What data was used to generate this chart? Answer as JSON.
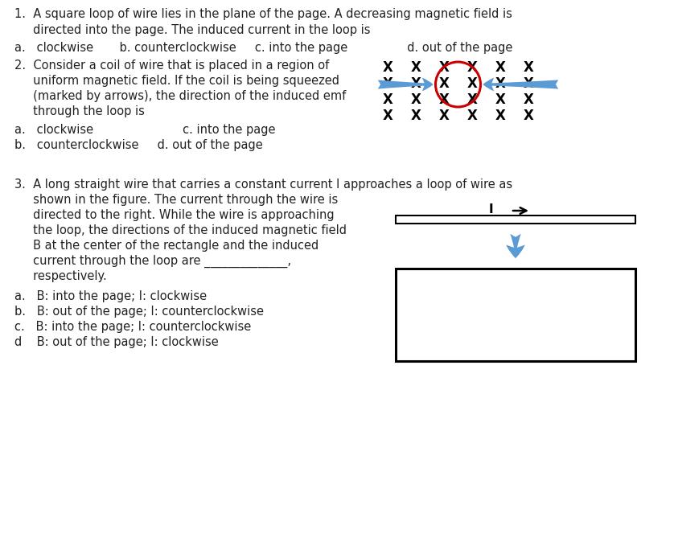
{
  "bg_color": "#ffffff",
  "text_color": "#222222",
  "q1_line1": "1.  A square loop of wire lies in the plane of the page. A decreasing magnetic field is",
  "q1_line2": "     directed into the page. The induced current in the loop is",
  "q1_ans": "a.   clockwise       b. counterclockwise     c. into the page                d. out of the page",
  "q2_line1": "2.  Consider a coil of wire that is placed in a region of",
  "q2_line2": "     uniform magnetic field. If the coil is being squeezed",
  "q2_line3": "     (marked by arrows), the direction of the induced emf",
  "q2_line4": "     through the loop is",
  "q2_ans_a": "a.   clockwise                        c. into the page",
  "q2_ans_b": "b.   counterclockwise     d. out of the page",
  "q3_line1": "3.  A long straight wire that carries a constant current I approaches a loop of wire as",
  "q3_line2": "     shown in the figure. The current through the wire is",
  "q3_line3": "     directed to the right. While the wire is approaching",
  "q3_line4": "     the loop, the directions of the induced magnetic field",
  "q3_line5": "     B at the center of the rectangle and the induced",
  "q3_line6": "     current through the loop are ______________,",
  "q3_line7": "     respectively.",
  "q3_ans_a": "a.   B: into the page; I: clockwise",
  "q3_ans_b": "b.   B: out of the page; I: counterclockwise",
  "q3_ans_c": "c.   B: into the page; I: counterclockwise",
  "q3_ans_d": "d    B: out of the page; I: clockwise",
  "circle_color": "#cc0000",
  "arrow_color": "#5b9bd5",
  "font_size_main": 10.5,
  "font_size_ans": 10.5,
  "font_size_x": 12.0,
  "font_size_I": 11.0
}
